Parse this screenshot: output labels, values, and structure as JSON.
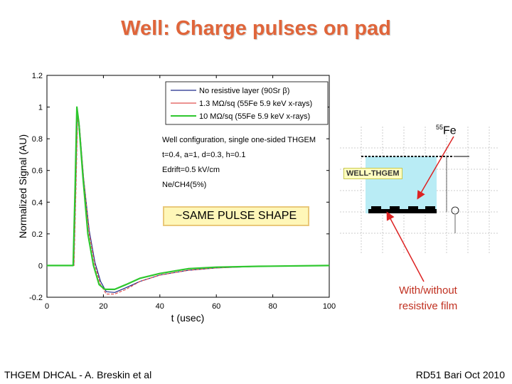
{
  "slide": {
    "title": "Well: Charge pulses on pad",
    "footer_left": "THGEM DHCAL - A. Breskin et al",
    "footer_right": "RD51 Bari Oct 2010"
  },
  "annotations": {
    "fe_source": "Fe",
    "fe_mass": "55",
    "well_label": "WELL-THGEM",
    "pulse_shape": "~SAME PULSE SHAPE",
    "film_line1": "With/without",
    "film_line2": "resistive film"
  },
  "chart_data": {
    "type": "line",
    "xlabel": "t (usec)",
    "ylabel": "Normalized Signal (AU)",
    "xlim": [
      0,
      100
    ],
    "ylim": [
      -0.2,
      1.2
    ],
    "xticks": [
      0,
      20,
      40,
      60,
      80,
      100
    ],
    "yticks": [
      -0.2,
      0,
      0.2,
      0.4,
      0.6,
      0.8,
      1,
      1.2
    ],
    "grid": false,
    "legend_position": "top-right",
    "series": [
      {
        "name": "No resistive layer (90Sr β)",
        "color": "#1f2a8c",
        "points": [
          [
            0,
            0
          ],
          [
            9.5,
            0
          ],
          [
            10.2,
            0.5
          ],
          [
            10.8,
            0.97
          ],
          [
            11.5,
            0.88
          ],
          [
            13,
            0.55
          ],
          [
            15,
            0.22
          ],
          [
            17,
            0.02
          ],
          [
            19,
            -0.1
          ],
          [
            21,
            -0.165
          ],
          [
            24,
            -0.17
          ],
          [
            28,
            -0.14
          ],
          [
            33,
            -0.1
          ],
          [
            40,
            -0.06
          ],
          [
            50,
            -0.03
          ],
          [
            60,
            -0.015
          ],
          [
            75,
            -0.005
          ],
          [
            100,
            0
          ]
        ]
      },
      {
        "name": "1.3 MΩ/sq (55Fe 5.9 keV x-rays)",
        "color": "#e0504f",
        "points": [
          [
            0,
            0
          ],
          [
            9.6,
            0
          ],
          [
            10.3,
            0.5
          ],
          [
            10.9,
            0.97
          ],
          [
            11.6,
            0.86
          ],
          [
            13,
            0.55
          ],
          [
            15,
            0.2
          ],
          [
            17,
            0.0
          ],
          [
            19,
            -0.12
          ],
          [
            21,
            -0.18
          ],
          [
            24,
            -0.18
          ],
          [
            28,
            -0.15
          ],
          [
            33,
            -0.1
          ],
          [
            40,
            -0.06
          ],
          [
            50,
            -0.03
          ],
          [
            60,
            -0.015
          ],
          [
            75,
            -0.005
          ],
          [
            100,
            0
          ]
        ]
      },
      {
        "name": "10 MΩ/sq (55Fe 5.9 keV x-rays)",
        "color": "#2ec72e",
        "points": [
          [
            0,
            0
          ],
          [
            9.3,
            0
          ],
          [
            10,
            0.5
          ],
          [
            10.6,
            1.0
          ],
          [
            11.3,
            0.9
          ],
          [
            12.8,
            0.55
          ],
          [
            14.5,
            0.2
          ],
          [
            16.5,
            0.0
          ],
          [
            18.5,
            -0.12
          ],
          [
            20.5,
            -0.15
          ],
          [
            24,
            -0.15
          ],
          [
            28,
            -0.12
          ],
          [
            33,
            -0.08
          ],
          [
            40,
            -0.05
          ],
          [
            50,
            -0.02
          ],
          [
            60,
            -0.01
          ],
          [
            75,
            -0.005
          ],
          [
            100,
            0
          ]
        ]
      }
    ],
    "legend_entries": [
      "No resistive layer (90Sr β)",
      "1.3 MΩ/sq (55Fe 5.9 keV x-rays)",
      "10 MΩ/sq (55Fe 5.9 keV x-rays)"
    ],
    "annotations": [
      "Well configuration, single one-sided THGEM",
      "t=0.4, a=1, d=0.3, h=0.1",
      "Edrift=0.5 kV/cm",
      "Ne/CH4(5%)"
    ]
  }
}
